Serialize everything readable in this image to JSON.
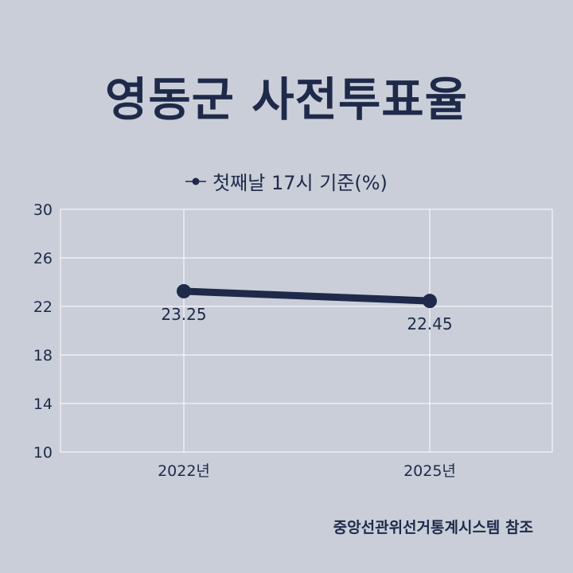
{
  "chart_data": {
    "type": "line",
    "title": "영동군 사전투표율",
    "categories": [
      "2022년",
      "2025년"
    ],
    "series": [
      {
        "name": "첫째날 17시 기준(%)",
        "values": [
          23.25,
          22.45
        ],
        "labels": [
          "23.25",
          "22.45"
        ]
      }
    ],
    "yticks": [
      "10",
      "14",
      "18",
      "22",
      "26",
      "30"
    ],
    "ylim": [
      10,
      30
    ],
    "grid": true,
    "legend": "top-center",
    "colors": {
      "line": "#1f2a4a",
      "grid": "#ffffff",
      "background": "#c9ced8"
    }
  },
  "source": "중앙선관위선거통계시스템 참조"
}
